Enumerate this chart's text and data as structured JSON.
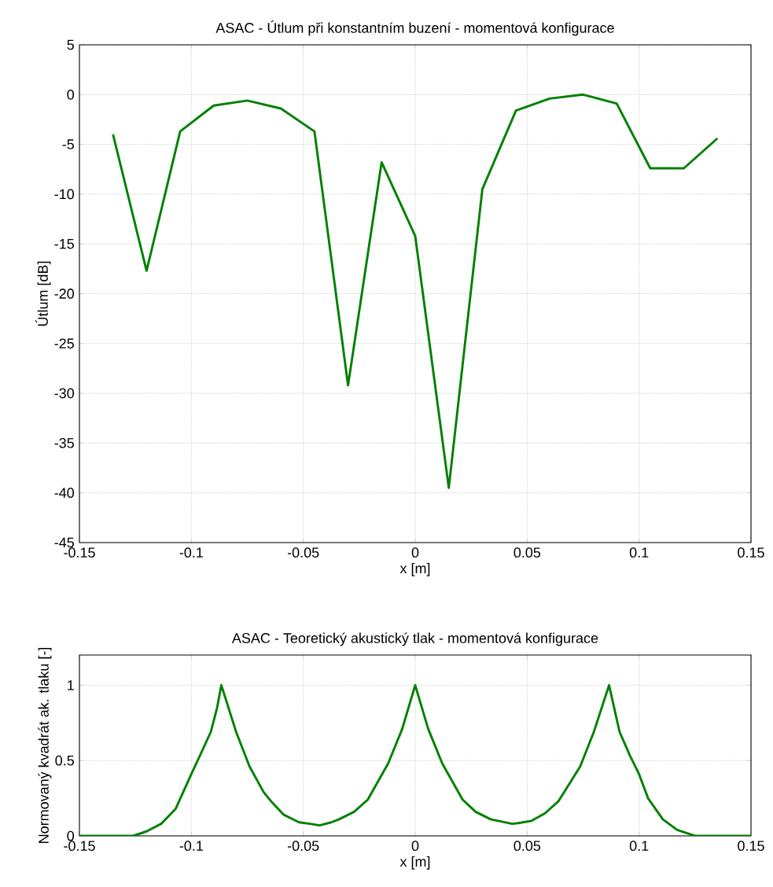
{
  "chart_data": [
    {
      "type": "line",
      "title": "ASAC - Útlum při konstantním buzení - momentová konfigurace",
      "xlabel": "x [m]",
      "ylabel": "Útlum [dB]",
      "x": [
        -0.135,
        -0.12,
        -0.105,
        -0.09,
        -0.075,
        -0.06,
        -0.045,
        -0.03,
        -0.015,
        0,
        0.015,
        0.03,
        0.045,
        0.06,
        0.075,
        0.09,
        0.105,
        0.12,
        0.135
      ],
      "series": [
        {
          "color": "#008000",
          "values": [
            -4,
            -17.7,
            -3.7,
            -1.1,
            -0.6,
            -1.4,
            -3.7,
            -29.2,
            -6.8,
            -14.2,
            -39.5,
            -9.5,
            -1.6,
            -0.4,
            0,
            -0.9,
            -7.4,
            -7.4,
            -4.4
          ]
        }
      ],
      "xlim": [
        -0.15,
        0.15
      ],
      "ylim": [
        -45,
        5
      ],
      "xticks": [
        -0.15,
        -0.1,
        -0.05,
        0,
        0.05,
        0.1,
        0.15
      ],
      "yticks": [
        -45,
        -40,
        -35,
        -30,
        -25,
        -20,
        -15,
        -10,
        -5,
        0,
        5
      ],
      "grid": true,
      "marker": "none",
      "line_style": "solid"
    },
    {
      "type": "line",
      "title": "ASAC - Teoretický akustický tlak - momentová konfigurace",
      "xlabel": "x [m]",
      "ylabel": "Normovaný kvadrát ak. tlaku [-]",
      "x": [
        -0.15,
        -0.126,
        -0.12,
        -0.1135,
        -0.107,
        -0.1,
        -0.095,
        -0.0913,
        -0.0885,
        -0.0866,
        -0.08,
        -0.074,
        -0.0677,
        -0.0644,
        -0.0587,
        -0.0519,
        -0.047,
        -0.0427,
        -0.0375,
        -0.034,
        -0.0273,
        -0.0212,
        -0.0121,
        -0.0058,
        0,
        0.0058,
        0.0121,
        0.0212,
        0.027,
        0.0337,
        0.0433,
        0.046,
        0.052,
        0.058,
        0.064,
        0.0737,
        0.0798,
        0.0866,
        0.0913,
        0.096,
        0.1,
        0.104,
        0.1106,
        0.117,
        0.125,
        0.15
      ],
      "series": [
        {
          "color": "#008000",
          "values": [
            0,
            0,
            0.03,
            0.08,
            0.18,
            0.41,
            0.57,
            0.69,
            0.85,
            1,
            0.69,
            0.46,
            0.29,
            0.23,
            0.14,
            0.09,
            0.08,
            0.07,
            0.09,
            0.11,
            0.16,
            0.24,
            0.48,
            0.71,
            1,
            0.71,
            0.48,
            0.24,
            0.16,
            0.11,
            0.08,
            0.085,
            0.1,
            0.15,
            0.23,
            0.46,
            0.69,
            1,
            0.69,
            0.53,
            0.41,
            0.25,
            0.11,
            0.04,
            0,
            0
          ]
        }
      ],
      "xlim": [
        -0.15,
        0.15
      ],
      "ylim": [
        0,
        1.2
      ],
      "xticks": [
        -0.15,
        -0.1,
        -0.05,
        0,
        0.05,
        0.1,
        0.15
      ],
      "yticks": [
        0,
        0.5,
        1
      ],
      "grid": true,
      "marker": "none",
      "line_style": "solid"
    }
  ]
}
